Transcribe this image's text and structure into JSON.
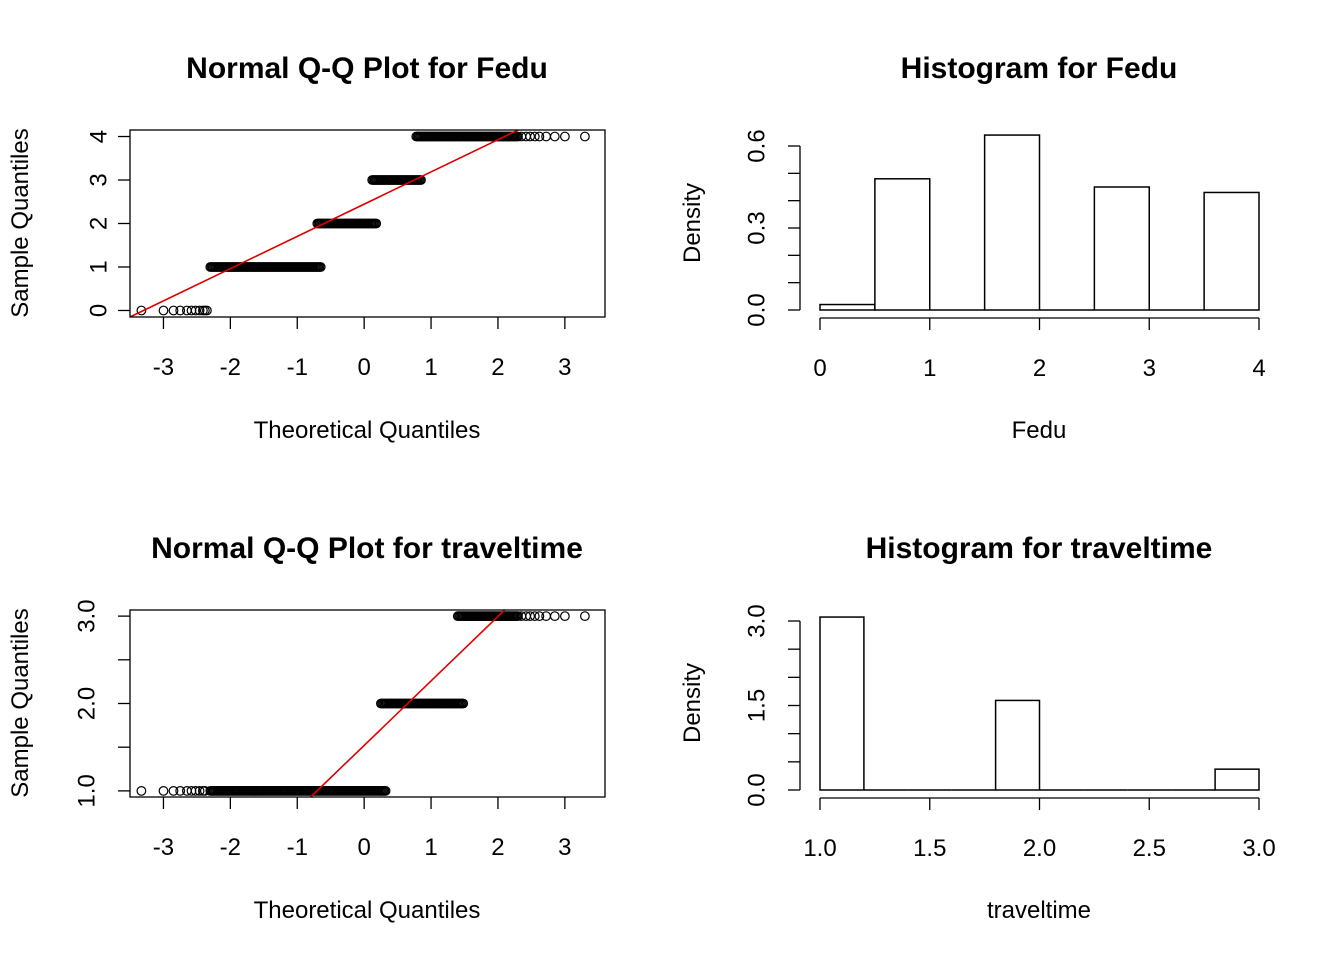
{
  "chart_data": [
    {
      "type": "scatter",
      "subtype": "normal-qq",
      "title": "Normal Q-Q Plot for  Fedu",
      "xlabel": "Theoretical Quantiles",
      "ylabel": "Sample Quantiles",
      "xlim": [
        -3.5,
        3.6
      ],
      "ylim": [
        -0.15,
        4.15
      ],
      "xticks": [
        -3,
        -2,
        -1,
        0,
        1,
        2,
        3
      ],
      "yticks": [
        0,
        1,
        2,
        3,
        4
      ],
      "ytick_rotated": true,
      "groups": [
        {
          "y": 0,
          "x_min": -2.35,
          "x_max": -2.35,
          "isolated_x": [
            -3.33,
            -3.0,
            -2.85,
            -2.75,
            -2.65,
            -2.58,
            -2.52,
            -2.46,
            -2.41,
            -2.38
          ]
        },
        {
          "y": 1,
          "x_min": -2.3,
          "x_max": -0.65,
          "isolated_x": []
        },
        {
          "y": 2,
          "x_min": -0.7,
          "x_max": 0.18,
          "isolated_x": []
        },
        {
          "y": 3,
          "x_min": 0.12,
          "x_max": 0.85,
          "isolated_x": []
        },
        {
          "y": 4,
          "x_min": 0.78,
          "x_max": 2.3,
          "isolated_x": [
            2.35,
            2.42,
            2.48,
            2.55,
            2.62,
            2.72,
            2.85,
            3.0,
            3.3
          ]
        }
      ],
      "reference_line": {
        "points": [
          [
            -3.5,
            -0.15
          ],
          [
            2.3,
            4.15
          ]
        ],
        "color": "#e00000"
      },
      "grid": false
    },
    {
      "type": "bar",
      "subtype": "histogram",
      "title": "Histogram for  Fedu",
      "xlabel": "Fedu",
      "ylabel": "Density",
      "xlim": [
        0,
        4
      ],
      "ylim": [
        0,
        0.6
      ],
      "xticks": [
        0,
        1,
        2,
        3,
        4
      ],
      "yticks_labeled": [
        0.0,
        0.3,
        0.6
      ],
      "ytick_labels": [
        "0.0",
        "0.3",
        "0.6"
      ],
      "yticks_minor": [
        0.1,
        0.2,
        0.4,
        0.5
      ],
      "bins": [
        {
          "x0": 0.0,
          "x1": 0.5,
          "density": 0.02
        },
        {
          "x0": 0.5,
          "x1": 1.0,
          "density": 0.48
        },
        {
          "x0": 1.0,
          "x1": 1.5,
          "density": 0.0
        },
        {
          "x0": 1.5,
          "x1": 2.0,
          "density": 0.64
        },
        {
          "x0": 2.0,
          "x1": 2.5,
          "density": 0.0
        },
        {
          "x0": 2.5,
          "x1": 3.0,
          "density": 0.45
        },
        {
          "x0": 3.0,
          "x1": 3.5,
          "density": 0.0
        },
        {
          "x0": 3.5,
          "x1": 4.0,
          "density": 0.43
        }
      ],
      "grid": false
    },
    {
      "type": "scatter",
      "subtype": "normal-qq",
      "title": "Normal Q-Q Plot for  traveltime",
      "xlabel": "Theoretical Quantiles",
      "ylabel": "Sample Quantiles",
      "xlim": [
        -3.5,
        3.6
      ],
      "ylim": [
        0.93,
        3.07
      ],
      "xticks": [
        -3,
        -2,
        -1,
        0,
        1,
        2,
        3
      ],
      "yticks_labeled": [
        1.0,
        2.0,
        3.0
      ],
      "ytick_labels": [
        "1.0",
        "2.0",
        "3.0"
      ],
      "yticks_minor": [
        1.5,
        2.5
      ],
      "groups": [
        {
          "y": 1,
          "x_min": -2.3,
          "x_max": 0.32,
          "isolated_x": [
            -3.33,
            -3.0,
            -2.85,
            -2.75,
            -2.65,
            -2.58,
            -2.52,
            -2.46,
            -2.41,
            -2.38
          ]
        },
        {
          "y": 2,
          "x_min": 0.25,
          "x_max": 1.48,
          "isolated_x": []
        },
        {
          "y": 3,
          "x_min": 1.4,
          "x_max": 2.3,
          "isolated_x": [
            2.35,
            2.42,
            2.48,
            2.55,
            2.62,
            2.72,
            2.85,
            3.0,
            3.3
          ]
        }
      ],
      "reference_line": {
        "points": [
          [
            -0.8,
            0.93
          ],
          [
            2.1,
            3.07
          ]
        ],
        "color": "#e00000"
      },
      "grid": false
    },
    {
      "type": "bar",
      "subtype": "histogram",
      "title": "Histogram for  traveltime",
      "xlabel": "traveltime",
      "ylabel": "Density",
      "xlim": [
        1.0,
        3.0
      ],
      "ylim": [
        0,
        3.0
      ],
      "xticks": [
        1.0,
        1.5,
        2.0,
        2.5,
        3.0
      ],
      "xtick_labels": [
        "1.0",
        "1.5",
        "2.0",
        "2.5",
        "3.0"
      ],
      "yticks_labeled": [
        0.0,
        1.5,
        3.0
      ],
      "ytick_labels": [
        "0.0",
        "1.5",
        "3.0"
      ],
      "yticks_minor": [
        0.5,
        1.0,
        2.0,
        2.5
      ],
      "bins": [
        {
          "x0": 1.0,
          "x1": 1.2,
          "density": 3.07
        },
        {
          "x0": 1.2,
          "x1": 1.4,
          "density": 0.0
        },
        {
          "x0": 1.4,
          "x1": 1.6,
          "density": 0.0
        },
        {
          "x0": 1.6,
          "x1": 1.8,
          "density": 0.0
        },
        {
          "x0": 1.8,
          "x1": 2.0,
          "density": 1.59
        },
        {
          "x0": 2.0,
          "x1": 2.2,
          "density": 0.0
        },
        {
          "x0": 2.2,
          "x1": 2.4,
          "density": 0.0
        },
        {
          "x0": 2.4,
          "x1": 2.6,
          "density": 0.0
        },
        {
          "x0": 2.6,
          "x1": 2.8,
          "density": 0.0
        },
        {
          "x0": 2.8,
          "x1": 3.0,
          "density": 0.37
        }
      ],
      "grid": false
    }
  ]
}
